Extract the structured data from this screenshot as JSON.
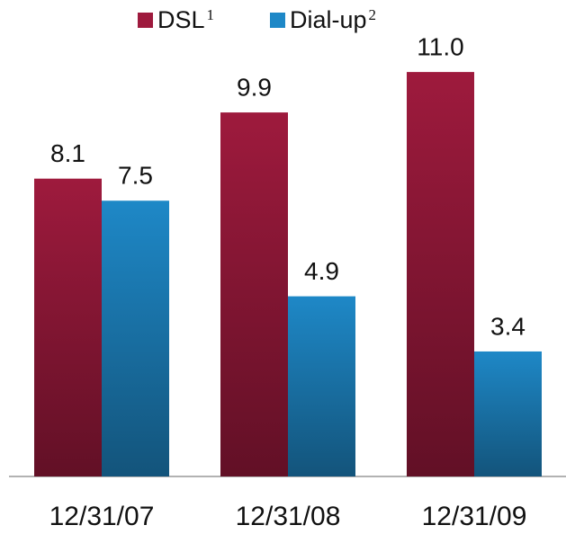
{
  "chart_data": {
    "type": "bar",
    "categories": [
      "12/31/07",
      "12/31/08",
      "12/31/09"
    ],
    "series": [
      {
        "name": "DSL",
        "note": "1",
        "color": "#9e1a3d",
        "values": [
          8.1,
          9.9,
          11.0
        ],
        "value_labels": [
          "8.1",
          "9.9",
          "11.0"
        ]
      },
      {
        "name": "Dial-up",
        "note": "2",
        "color": "#1e88c7",
        "values": [
          7.5,
          4.9,
          3.4
        ]
      }
    ],
    "grid": false
  }
}
